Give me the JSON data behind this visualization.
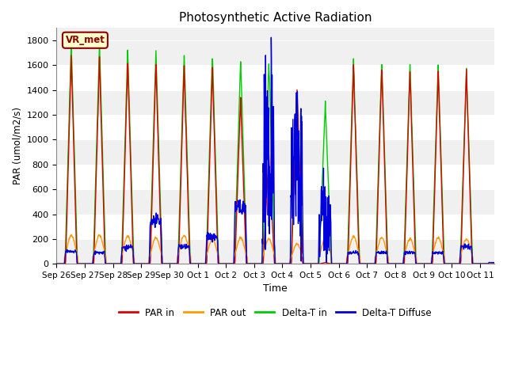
{
  "title": "Photosynthetic Active Radiation",
  "xlabel": "Time",
  "ylabel": "PAR (umol/m2/s)",
  "ylim": [
    0,
    1900
  ],
  "yticks": [
    0,
    200,
    400,
    600,
    800,
    1000,
    1200,
    1400,
    1600,
    1800
  ],
  "legend_label": "VR_met",
  "series_labels": [
    "PAR in",
    "PAR out",
    "Delta-T in",
    "Delta-T Diffuse"
  ],
  "series_colors": [
    "#dd0000",
    "#ff9900",
    "#00cc00",
    "#0000dd"
  ],
  "background_color": "#f0f0f0",
  "band_color": "#ffffff",
  "xtick_labels": [
    "Sep 26",
    "Sep 27",
    "Sep 28",
    "Sep 29",
    "Sep 30",
    "Oct 1",
    "Oct 2",
    "Oct 3",
    "Oct 4",
    "Oct 5",
    "Oct 6",
    "Oct 7",
    "Oct 8",
    "Oct 9",
    "Oct 10",
    "Oct 11"
  ],
  "par_in_peaks": [
    1680,
    1650,
    1620,
    1610,
    1600,
    1580,
    1330,
    870,
    1400,
    10,
    1600,
    1600,
    1550,
    1560,
    1560,
    10
  ],
  "par_out_peaks": [
    230,
    230,
    220,
    210,
    230,
    200,
    210,
    200,
    160,
    200,
    220,
    210,
    200,
    210,
    200,
    10
  ],
  "delta_t_in_peaks": [
    1790,
    1790,
    1730,
    1720,
    1700,
    1700,
    1650,
    1620,
    1350,
    1290,
    1650,
    1640,
    1620,
    1620,
    1570,
    10
  ],
  "delta_t_diff_peaks": [
    100,
    90,
    130,
    340,
    140,
    220,
    450,
    850,
    800,
    380,
    90,
    90,
    90,
    90,
    140,
    10
  ]
}
